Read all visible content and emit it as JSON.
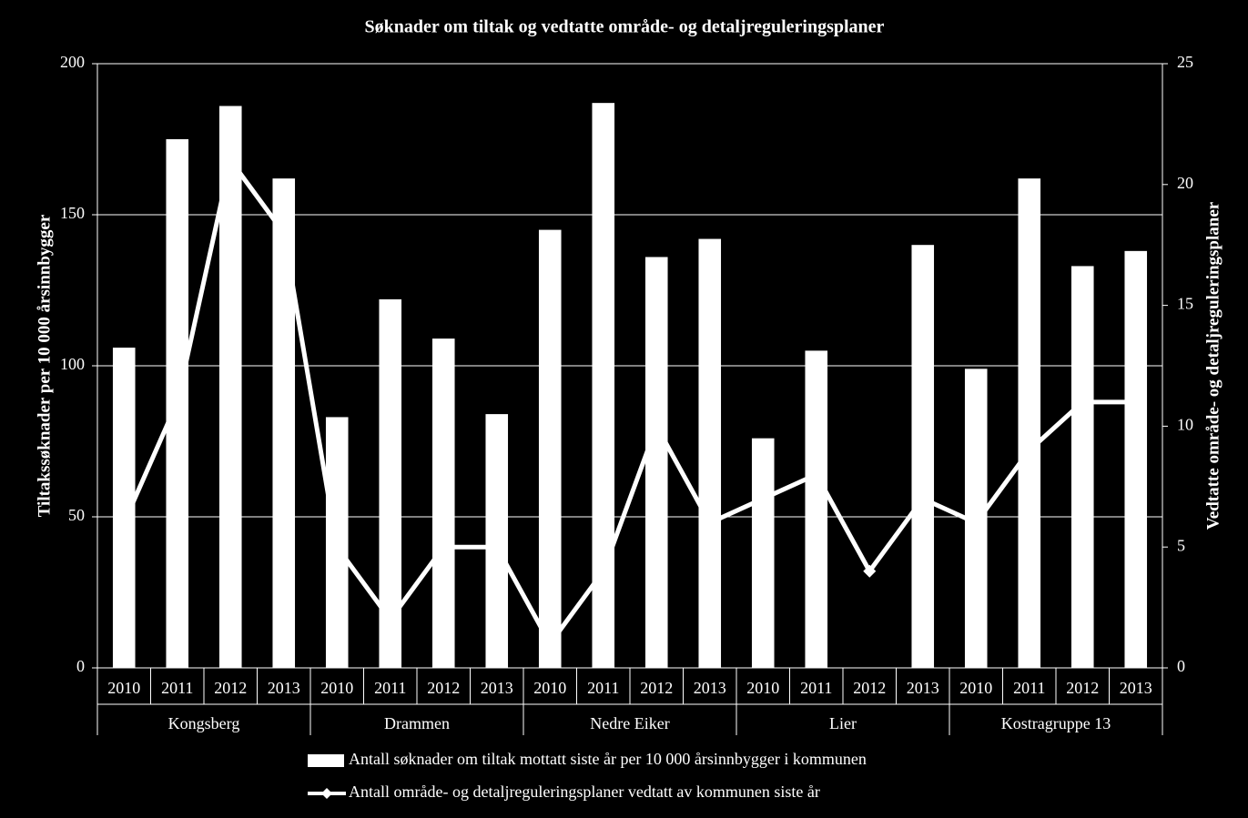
{
  "chart_data": {
    "type": "bar-line",
    "title": "Søknader om tiltak og vedtatte område- og detaljreguleringsplaner",
    "ylabel": "Tiltakssøknader  per 10 000 årsinnbygger",
    "y2label": "Vedtatte område- og detaljreguleringsplaner",
    "categories": [
      "2010",
      "2011",
      "2012",
      "2013",
      "2010",
      "2011",
      "2012",
      "2013",
      "2010",
      "2011",
      "2012",
      "2013",
      "2010",
      "2011",
      "2012",
      "2013",
      "2010",
      "2011",
      "2012",
      "2013"
    ],
    "groups": [
      "Kongsberg",
      "Drammen",
      "Nedre Eiker",
      "Lier",
      "Kostragruppe 13"
    ],
    "series": [
      {
        "name": "Antall søknader om tiltak mottatt siste år per 10 000 årsinnbygger i kommunen",
        "type": "bar",
        "color": "#ffffff",
        "values": [
          106,
          175,
          186,
          162,
          83,
          122,
          109,
          84,
          145,
          187,
          136,
          142,
          76,
          105,
          null,
          140,
          99,
          162,
          133,
          138
        ]
      },
      {
        "name": "Antall område- og detaljreguleringsplaner vedtatt av kommunen siste år",
        "type": "line",
        "axis": "y2",
        "color": "#ffffff",
        "values": [
          6,
          11,
          21,
          18,
          5,
          2,
          5,
          5,
          1,
          4,
          10,
          6,
          7,
          8,
          4,
          7,
          6,
          9,
          11,
          11
        ]
      }
    ],
    "ylim": [
      0,
      200
    ],
    "yticks": [
      0,
      50,
      100,
      150,
      200
    ],
    "y2lim": [
      0,
      25
    ],
    "y2ticks": [
      0,
      5,
      10,
      15,
      20,
      25
    ],
    "grid": true
  }
}
